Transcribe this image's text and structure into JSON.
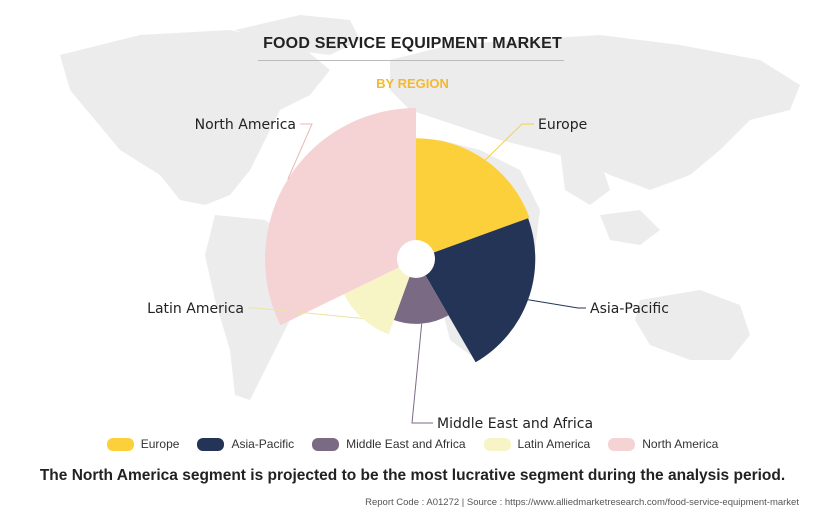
{
  "header": {
    "title": "FOOD SERVICE EQUIPMENT MARKET",
    "subtitle": "BY REGION"
  },
  "chart_data": {
    "type": "pie",
    "subtype": "nightingale-rose",
    "title": "FOOD SERVICE EQUIPMENT MARKET",
    "subtitle": "BY REGION",
    "categories": [
      "Europe",
      "Asia-Pacific",
      "Middle East and Africa",
      "Latin America",
      "North America"
    ],
    "angles_deg": [
      70,
      80,
      50,
      44,
      116
    ],
    "radius_relative": [
      0.8,
      0.79,
      0.43,
      0.53,
      1.0
    ],
    "colors": [
      "#fcd03a",
      "#243457",
      "#7b6a84",
      "#f7f4c6",
      "#f5d3d5"
    ],
    "legend_position": "bottom"
  },
  "legend": {
    "items": [
      {
        "label": "Europe",
        "color": "#fcd03a"
      },
      {
        "label": "Asia-Pacific",
        "color": "#243457"
      },
      {
        "label": "Middle East and Africa",
        "color": "#7b6a84"
      },
      {
        "label": "Latin America",
        "color": "#f7f4c6"
      },
      {
        "label": "North America",
        "color": "#f5d3d5"
      }
    ]
  },
  "caption": "The North America segment is projected to be the most lucrative segment during the analysis period.",
  "footer": "Report Code : A01272  |  Source : https://www.alliedmarketresearch.com/food-service-equipment-market"
}
